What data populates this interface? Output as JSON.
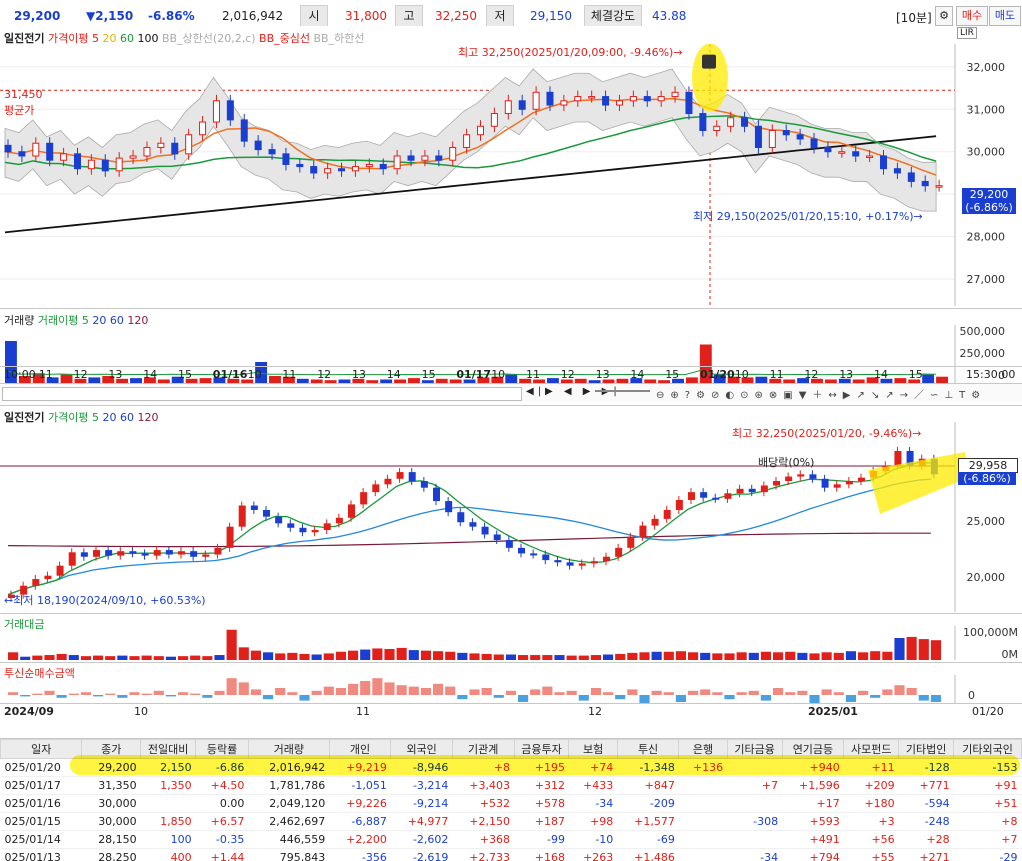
{
  "quote": {
    "price": "29,200",
    "change": "▼2,150",
    "change_pct": "-6.86%",
    "volume": "2,016,942",
    "open_label": "시",
    "open": "31,800",
    "high_label": "고",
    "high": "32,250",
    "low_label": "저",
    "low": "29,150",
    "strength_label": "체결강도",
    "strength": "43.88",
    "interval": "[10분]",
    "buy_label": "매수",
    "sell_label": "매도"
  },
  "chart1": {
    "stock_name": "일진전기",
    "ma_label": "가격이평 5",
    "ma20": "20",
    "ma60": "60",
    "ma100": "100",
    "bb_upper": "BB_상한선(20,2,c)",
    "bb_mid": "BB_중심선",
    "bb_lower": "BB_하한선",
    "avg_price_value": "31,450",
    "avg_price_label": "평균가",
    "high_annotation": "최고 32,250(2025/01/20,09:00, -9.46%)→",
    "low_annotation": "최저 29,150(2025/01/20,15:10, +0.17%)→",
    "price_tag": "29,200",
    "price_tag_pct": "(-6.86%)",
    "y_ticks": [
      "32,000",
      "31,000",
      "30,000",
      "29,000",
      "28,000",
      "27,000"
    ]
  },
  "volume1": {
    "label": "거래량",
    "ma_label": "거래이평 5",
    "ma20": "20",
    "ma60": "60",
    "ma120": "120",
    "y_ticks": [
      "500,000",
      "250,000",
      "0"
    ],
    "x_ticks": [
      "10:00",
      "11",
      "12",
      "13",
      "14",
      "15",
      "01/16",
      "10",
      "11",
      "12",
      "13",
      "14",
      "15",
      "01/17",
      "10",
      "11",
      "12",
      "13",
      "14",
      "15",
      "01/20",
      "10",
      "11",
      "12",
      "13",
      "14",
      "15"
    ],
    "x_end": "15:30:00"
  },
  "chart2": {
    "stock_name": "일진전기",
    "ma_label": "가격이평 5",
    "ma20": "20",
    "ma60": "60",
    "ma120": "120",
    "high_annotation": "최고 32,250(2025/01/20, -9.46%)→",
    "low_annotation": "←최저 18,190(2024/09/10, +60.53%)",
    "dividend_label": "배당락(0%)",
    "price_tag": "29,958",
    "price_tag2": "29,200",
    "price_tag_pct": "(-6.86%)",
    "y_ticks": [
      "25,000",
      "20,000"
    ]
  },
  "amount": {
    "label": "거래대금",
    "y_ticks": [
      "100,000M",
      "0M"
    ]
  },
  "trust": {
    "label": "투신순매수금액",
    "y_tick": "0"
  },
  "x_axis2": {
    "ticks": [
      "2024/09",
      "10",
      "11",
      "12",
      "2025/01"
    ],
    "end": "01/20"
  },
  "table": {
    "headers": [
      "일자",
      "종가",
      "전일대비",
      "등락률",
      "거래량",
      "개인",
      "외국인",
      "기관계",
      "금융투자",
      "보험",
      "투신",
      "은행",
      "기타금융",
      "연기금등",
      "사모펀드",
      "기타법인",
      "기타외국인"
    ],
    "rows": [
      [
        "025/01/20",
        "29,200",
        "2,150",
        "-6.86",
        "2,016,942",
        "+9,219",
        "-8,946",
        "+8",
        "+195",
        "+74",
        "-1,348",
        "+136",
        "",
        "+940",
        "+11",
        "-128",
        "-153"
      ],
      [
        "025/01/17",
        "31,350",
        "1,350",
        "+4.50",
        "1,781,786",
        "-1,051",
        "-3,214",
        "+3,403",
        "+312",
        "+433",
        "+847",
        "",
        "+7",
        "+1,596",
        "+209",
        "+771",
        "+91"
      ],
      [
        "025/01/16",
        "30,000",
        "",
        "0.00",
        "2,049,120",
        "+9,226",
        "-9,214",
        "+532",
        "+578",
        "-34",
        "-209",
        "",
        "",
        "+17",
        "+180",
        "-594",
        "+51"
      ],
      [
        "025/01/15",
        "30,000",
        "1,850",
        "+6.57",
        "2,462,697",
        "-6,887",
        "+4,977",
        "+2,150",
        "+187",
        "+98",
        "+1,577",
        "",
        "-308",
        "+593",
        "+3",
        "-248",
        "+8"
      ],
      [
        "025/01/14",
        "28,150",
        "100",
        "-0.35",
        "446,559",
        "+2,200",
        "-2,602",
        "+368",
        "-99",
        "-10",
        "-69",
        "",
        "",
        "+491",
        "+56",
        "+28",
        "+7"
      ],
      [
        "025/01/13",
        "28,250",
        "400",
        "+1.44",
        "795,843",
        "-356",
        "-2,619",
        "+2,733",
        "+168",
        "+263",
        "+1,486",
        "",
        "-34",
        "+794",
        "+55",
        "+271",
        "-29"
      ]
    ]
  },
  "chart1_series": {
    "opens": [
      30.15,
      30.0,
      29.9,
      30.2,
      29.8,
      29.95,
      29.6,
      29.8,
      29.55,
      29.85,
      29.9,
      30.1,
      30.2,
      29.95,
      30.4,
      30.7,
      31.2,
      30.75,
      30.25,
      30.05,
      29.95,
      29.7,
      29.65,
      29.5,
      29.6,
      29.55,
      29.65,
      29.7,
      29.6,
      29.9,
      29.8,
      29.9,
      29.8,
      30.1,
      30.4,
      30.6,
      30.9,
      31.2,
      31.0,
      31.4,
      31.1,
      31.2,
      31.3,
      31.3,
      31.1,
      31.2,
      31.3,
      31.2,
      31.3,
      31.4,
      30.9,
      30.5,
      30.6,
      30.8,
      30.6,
      30.1,
      30.5,
      30.4,
      30.3,
      30.1,
      30.0,
      30.0,
      29.9,
      29.9,
      29.6,
      29.5,
      29.3,
      29.2
    ],
    "closes": [
      30.0,
      29.9,
      30.2,
      29.8,
      29.95,
      29.6,
      29.8,
      29.55,
      29.85,
      29.9,
      30.1,
      30.2,
      29.95,
      30.4,
      30.7,
      31.2,
      30.75,
      30.25,
      30.05,
      29.95,
      29.7,
      29.65,
      29.5,
      29.6,
      29.55,
      29.65,
      29.7,
      29.6,
      29.9,
      29.8,
      29.9,
      29.8,
      30.1,
      30.4,
      30.6,
      30.9,
      31.2,
      31.0,
      31.4,
      31.1,
      31.2,
      31.3,
      31.3,
      31.1,
      31.2,
      31.3,
      31.2,
      31.3,
      31.4,
      30.9,
      30.5,
      30.6,
      30.8,
      30.6,
      30.1,
      30.5,
      30.4,
      30.3,
      30.1,
      30.0,
      30.0,
      29.9,
      29.9,
      29.6,
      29.5,
      29.3,
      29.2,
      29.2
    ]
  },
  "chart2_series": {
    "closes": [
      18.4,
      19.2,
      19.8,
      20.1,
      21.0,
      22.2,
      21.8,
      22.4,
      21.9,
      22.3,
      22.1,
      21.9,
      22.4,
      22.0,
      22.3,
      21.8,
      22.0,
      22.6,
      24.5,
      26.4,
      26.0,
      25.4,
      24.8,
      24.4,
      24.0,
      24.2,
      24.8,
      25.3,
      26.5,
      27.6,
      28.3,
      28.8,
      29.4,
      28.6,
      28.0,
      26.8,
      25.8,
      24.9,
      24.5,
      23.8,
      23.3,
      22.6,
      22.1,
      22.0,
      21.5,
      21.3,
      21.0,
      21.2,
      21.4,
      21.8,
      22.6,
      23.6,
      24.6,
      25.2,
      26.0,
      26.9,
      27.6,
      27.1,
      27.0,
      27.5,
      27.9,
      27.6,
      28.2,
      28.6,
      29.0,
      29.2,
      28.8,
      28.0,
      28.3,
      28.6,
      28.9,
      29.5,
      30.0,
      31.3,
      30.0,
      30.6,
      29.2
    ]
  },
  "amount_series": [
    14,
    6,
    8,
    9,
    11,
    9,
    7,
    8,
    7,
    8,
    7,
    8,
    7,
    6,
    7,
    8,
    7,
    9,
    55,
    23,
    17,
    14,
    12,
    13,
    11,
    10,
    12,
    15,
    17,
    19,
    21,
    20,
    22,
    18,
    17,
    16,
    15,
    13,
    12,
    11,
    10,
    10,
    9,
    9,
    9,
    9,
    8,
    8,
    9,
    10,
    11,
    13,
    14,
    15,
    15,
    16,
    14,
    13,
    12,
    12,
    14,
    13,
    15,
    14,
    15,
    13,
    12,
    14,
    13,
    16,
    14,
    16,
    15,
    40,
    42,
    38,
    36
  ],
  "trust_series": [
    2,
    -1,
    1,
    3,
    -2,
    1,
    2,
    -1,
    1,
    -2,
    2,
    1,
    3,
    -1,
    2,
    1,
    -2,
    3,
    12,
    9,
    4,
    -3,
    5,
    2,
    -4,
    3,
    6,
    5,
    8,
    10,
    12,
    9,
    7,
    6,
    5,
    8,
    6,
    -3,
    4,
    5,
    -2,
    3,
    -5,
    4,
    6,
    2,
    3,
    -4,
    5,
    2,
    -3,
    4,
    -6,
    3,
    2,
    -5,
    3,
    4,
    2,
    -3,
    2,
    3,
    -4,
    5,
    2,
    3,
    -6,
    4,
    2,
    -5,
    3,
    -2,
    4,
    7,
    5,
    -4,
    -5
  ]
}
